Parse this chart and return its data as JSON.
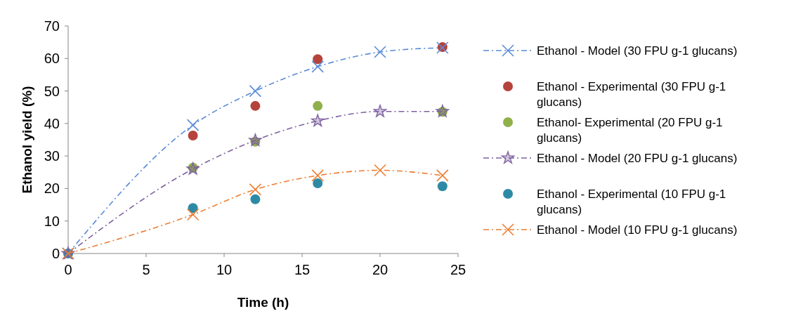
{
  "chart_data": {
    "type": "line",
    "xlabel": "Time (h)",
    "ylabel": "Ethanol yield (%)",
    "xlim": [
      0,
      25
    ],
    "ylim": [
      0,
      70
    ],
    "xticks": [
      0,
      5,
      10,
      15,
      20,
      25
    ],
    "yticks": [
      0,
      10,
      20,
      30,
      40,
      50,
      60,
      70
    ],
    "grid": false,
    "legend": "right",
    "line_style": "dashed",
    "series": [
      {
        "name": "Ethanol - Model (30 FPU g-1 glucans)",
        "marker": "cross",
        "color": "#5b8bd6",
        "x": [
          0,
          8,
          12,
          16,
          20,
          24
        ],
        "values": [
          0,
          39.5,
          50,
          57.5,
          62,
          63.3
        ]
      },
      {
        "name": "Ethanol - Experimental (30 FPU g-1 glucans)",
        "type": "scatter",
        "marker": "circle",
        "color": "#b5433c",
        "x": [
          8,
          12,
          16,
          24
        ],
        "values": [
          36.3,
          45.4,
          59.8,
          63.5
        ]
      },
      {
        "name": "Ethanol- Experimental (20 FPU g-1 glucans)",
        "type": "scatter",
        "marker": "circle",
        "color": "#8fb04a",
        "x": [
          8,
          12,
          16,
          24
        ],
        "values": [
          26.4,
          34.4,
          45.4,
          43.6
        ]
      },
      {
        "name": "Ethanol - Model (20 FPU g-1 glucans)",
        "marker": "star",
        "color": "#7e62a1",
        "x": [
          0,
          8,
          12,
          16,
          20,
          24
        ],
        "values": [
          0,
          26,
          34.8,
          40.8,
          43.7,
          43.7
        ]
      },
      {
        "name": "Ethanol - Experimental (10 FPU g-1 glucans)",
        "type": "scatter",
        "marker": "circle",
        "color": "#2e8aa4",
        "x": [
          0,
          8,
          12,
          16,
          24
        ],
        "values": [
          0,
          14,
          16.7,
          21.6,
          20.7
        ]
      },
      {
        "name": "Ethanol - Model (10 FPU g-1 glucans)",
        "marker": "cross",
        "color": "#ed7d31",
        "x": [
          0,
          8,
          12,
          16,
          20,
          24
        ],
        "values": [
          0,
          12,
          19.7,
          24,
          25.6,
          24
        ]
      }
    ]
  }
}
